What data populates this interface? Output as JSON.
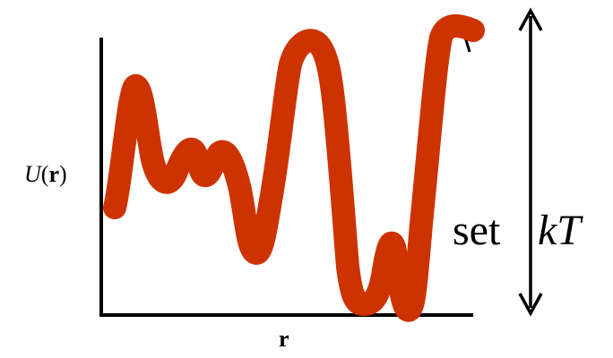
{
  "diagram": {
    "y_axis_label": {
      "italic": "U",
      "open": "(",
      "bold": "r",
      "close": ")"
    },
    "x_axis_label": "r",
    "annotation": {
      "prefix": "set",
      "variable": "kT"
    },
    "colors": {
      "curve": "#cc3300",
      "axes": "#000000",
      "text": "#000000"
    },
    "icons": {
      "range_arrow": "double-headed-vertical-arrow"
    }
  }
}
